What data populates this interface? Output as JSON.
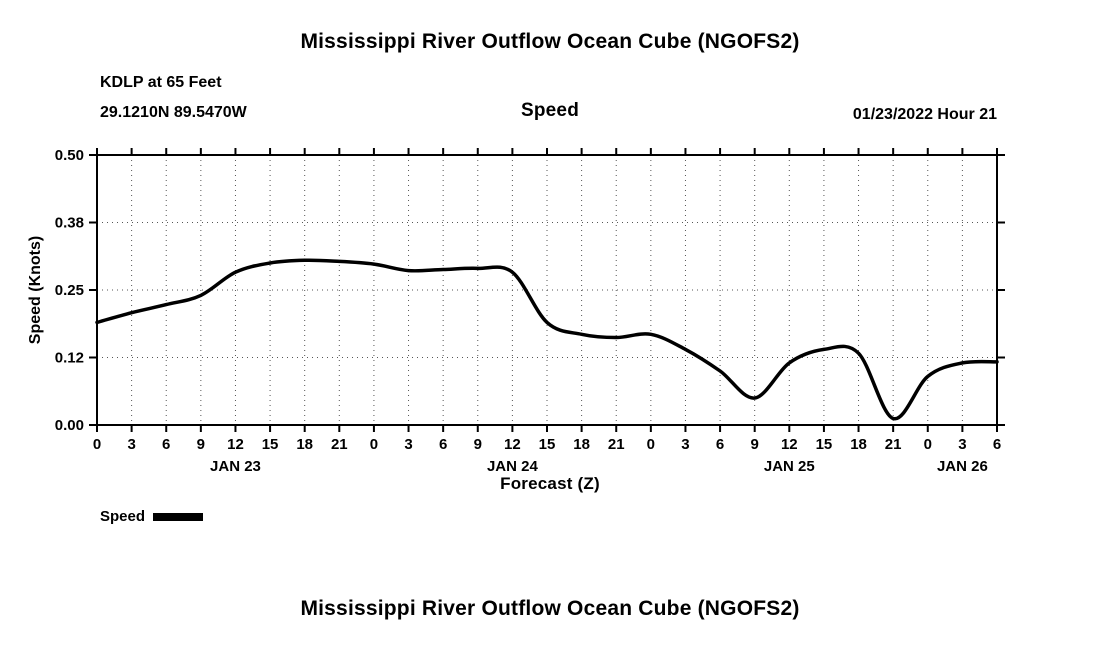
{
  "page": {
    "title_top": "Mississippi River Outflow Ocean Cube (NGOFS2)",
    "title_bottom": "Mississippi River Outflow Ocean Cube (NGOFS2)"
  },
  "chart_data": {
    "type": "line",
    "title": "Speed",
    "station": "KDLP at 65 Feet",
    "coordinates": "29.1210N  89.5470W",
    "datetime": "01/23/2022 Hour 21",
    "xlabel": "Forecast (Z)",
    "ylabel": "Speed (Knots)",
    "grid": "dotted",
    "legend_position": "bottom-left",
    "ylim": [
      0,
      0.5
    ],
    "yticks": [
      0,
      0.125,
      0.25,
      0.375,
      0.5
    ],
    "ytick_labels": [
      "0.00",
      "0.12",
      "0.25",
      "0.38",
      "0.50"
    ],
    "x_range": [
      0,
      78
    ],
    "xticks": [
      0,
      3,
      6,
      9,
      12,
      15,
      18,
      21,
      24,
      27,
      30,
      33,
      36,
      39,
      42,
      45,
      48,
      51,
      54,
      57,
      60,
      63,
      66,
      69,
      72,
      75,
      78
    ],
    "xtick_labels": [
      "0",
      "3",
      "6",
      "9",
      "12",
      "15",
      "18",
      "21",
      "0",
      "3",
      "6",
      "9",
      "12",
      "15",
      "18",
      "21",
      "0",
      "3",
      "6",
      "9",
      "12",
      "15",
      "18",
      "21",
      "0",
      "3",
      "6"
    ],
    "day_labels": [
      {
        "label": "JAN 23",
        "hour": 12
      },
      {
        "label": "JAN 24",
        "hour": 36
      },
      {
        "label": "JAN 25",
        "hour": 60
      },
      {
        "label": "JAN 26",
        "hour": 75
      }
    ],
    "legend": [
      {
        "label": "Speed"
      }
    ],
    "series": [
      {
        "name": "Speed",
        "color": "#000000",
        "x": [
          0,
          3,
          6,
          9,
          12,
          15,
          18,
          21,
          24,
          27,
          30,
          33,
          36,
          39,
          42,
          45,
          48,
          51,
          54,
          57,
          60,
          63,
          66,
          69,
          72,
          75,
          78
        ],
        "values": [
          0.19,
          0.208,
          0.223,
          0.24,
          0.283,
          0.3,
          0.305,
          0.303,
          0.298,
          0.286,
          0.288,
          0.29,
          0.283,
          0.19,
          0.168,
          0.162,
          0.168,
          0.14,
          0.1,
          0.05,
          0.115,
          0.14,
          0.133,
          0.012,
          0.09,
          0.115,
          0.117
        ]
      }
    ]
  }
}
